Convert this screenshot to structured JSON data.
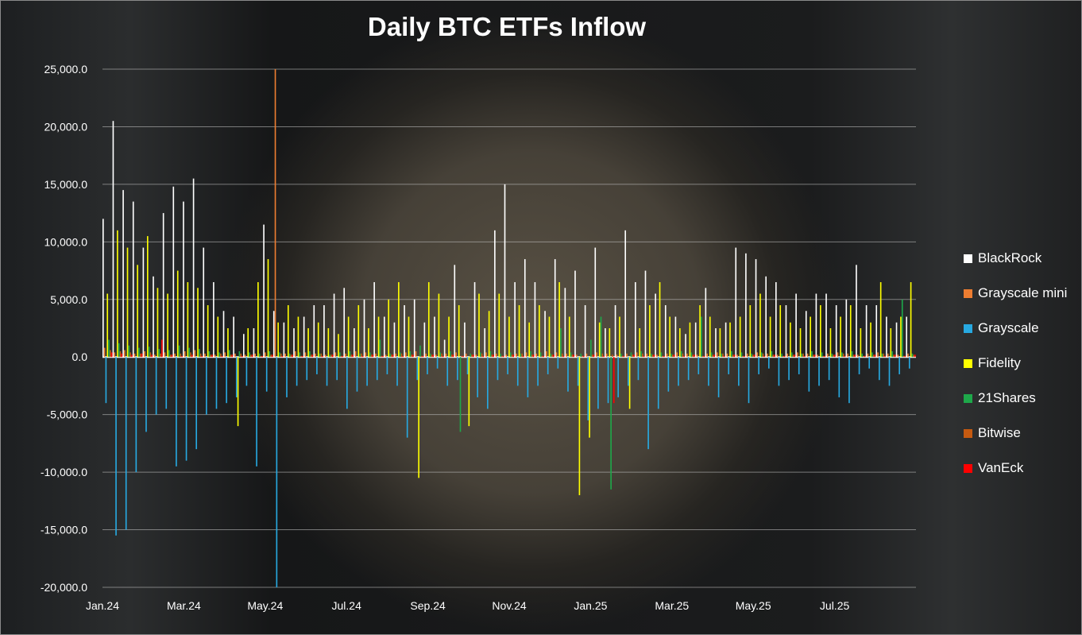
{
  "chart_data": {
    "type": "bar",
    "title": "Daily BTC ETFs Inflow",
    "xlabel": "",
    "ylabel": "",
    "ylim": [
      -20000,
      25000
    ],
    "yticks": [
      "25,000.0",
      "20,000.0",
      "15,000.0",
      "10,000.0",
      "5,000.0",
      "0.0",
      "-5,000.0",
      "-10,000.0",
      "-15,000.0",
      "-20,000.0"
    ],
    "ytick_values": [
      25000,
      20000,
      15000,
      10000,
      5000,
      0,
      -5000,
      -10000,
      -15000,
      -20000
    ],
    "xticks": [
      "Jan.24",
      "Mar.24",
      "May.24",
      "Jul.24",
      "Sep.24",
      "Nov.24",
      "Jan.25",
      "Mar.25",
      "May.25",
      "Jul.25"
    ],
    "grid": true,
    "legend_position": "right",
    "series": [
      {
        "name": "BlackRock",
        "color": "#ffffff",
        "values": [
          12000,
          20500,
          14500,
          13500,
          9500,
          7000,
          12500,
          14800,
          13500,
          15500,
          9500,
          6500,
          4000,
          3500,
          2000,
          2500,
          11500,
          4000,
          3000,
          2500,
          3500,
          4500,
          4500,
          5500,
          6000,
          2500,
          5000,
          6500,
          3500,
          3000,
          4500,
          5000,
          3000,
          3500,
          1500,
          8000,
          3000,
          6500,
          2500,
          11000,
          15000,
          6500,
          8500,
          6500,
          4000,
          8500,
          6000,
          7500,
          4500,
          9500,
          2500,
          4500,
          11000,
          6500,
          7500,
          5500,
          4500,
          3500,
          2000,
          3000,
          6000,
          2500,
          3000,
          9500,
          9000,
          8500,
          7000,
          6500,
          4500,
          5500,
          4000,
          5500,
          5500,
          4500,
          5000,
          8000,
          4500,
          4500,
          3500,
          3000,
          3500
        ]
      },
      {
        "name": "Grayscale mini",
        "color": "#ed7d31",
        "values": [
          800,
          400,
          600,
          300,
          500,
          200,
          400,
          300,
          500,
          600,
          300,
          200,
          400,
          300,
          200,
          300,
          400,
          25000,
          300,
          500,
          400,
          300,
          200,
          400,
          300,
          500,
          400,
          300,
          200,
          300,
          400,
          500,
          300,
          200,
          300,
          400,
          300,
          200,
          400,
          300,
          200,
          300,
          400,
          300,
          500,
          400,
          300,
          200,
          300,
          400,
          300,
          200,
          300,
          400,
          300,
          200,
          300,
          400,
          300,
          200,
          300,
          400,
          300,
          200,
          300,
          400,
          300,
          200,
          300,
          400,
          300,
          200,
          300,
          400,
          300,
          200,
          300,
          400,
          300,
          200,
          300
        ]
      },
      {
        "name": "Grayscale",
        "color": "#27a9e1",
        "values": [
          -4000,
          -15500,
          -15000,
          -10000,
          -6500,
          -5000,
          -4500,
          -9500,
          -9000,
          -8000,
          -5000,
          -4500,
          -4000,
          -3500,
          -2500,
          -9500,
          -3000,
          -20000,
          -3500,
          -2500,
          -2000,
          -1500,
          -2500,
          -2000,
          -4500,
          -3000,
          -2500,
          -2000,
          -1500,
          -2500,
          -7000,
          -2000,
          -1500,
          -1000,
          -2500,
          -2000,
          -1500,
          -3500,
          -4500,
          -2000,
          -1500,
          -2500,
          -3500,
          -2500,
          -1500,
          -1000,
          -3000,
          -2500,
          -5500,
          -4500,
          -4000,
          -3500,
          -2500,
          -2000,
          -8000,
          -4500,
          -3000,
          -2500,
          -2000,
          -1500,
          -2500,
          -3500,
          -1500,
          -2500,
          -4000,
          -1500,
          -1000,
          -2500,
          -2000,
          -1500,
          -3000,
          -2500,
          -2000,
          -3500,
          -4000,
          -1500,
          -1000,
          -2000,
          -2500,
          -1500,
          -1000
        ]
      },
      {
        "name": "Fidelity",
        "color": "#ffff00",
        "values": [
          5500,
          11000,
          9500,
          8000,
          10500,
          6000,
          5500,
          7500,
          6500,
          6000,
          4500,
          3500,
          2500,
          -6000,
          2500,
          6500,
          8500,
          3000,
          4500,
          3500,
          2500,
          3000,
          2500,
          2000,
          3500,
          4500,
          2500,
          3500,
          5000,
          6500,
          3500,
          -10500,
          6500,
          5500,
          3500,
          4500,
          -6000,
          5500,
          4000,
          5500,
          3500,
          4500,
          3000,
          4500,
          3500,
          6500,
          3500,
          -12000,
          -7000,
          3000,
          2500,
          3500,
          -4500,
          2500,
          4500,
          6500,
          3500,
          2500,
          3000,
          4500,
          3500,
          2500,
          3000,
          3500,
          4500,
          5500,
          3500,
          4500,
          3000,
          2500,
          3500,
          4500,
          2500,
          3500,
          4500,
          2500,
          3000,
          6500,
          2500,
          3500,
          6500
        ]
      },
      {
        "name": "21Shares",
        "color": "#1ea84a",
        "values": [
          1500,
          1200,
          1000,
          800,
          900,
          700,
          600,
          1000,
          800,
          700,
          500,
          400,
          600,
          500,
          400,
          300,
          500,
          400,
          300,
          400,
          500,
          300,
          200,
          400,
          500,
          300,
          400,
          1500,
          300,
          400,
          500,
          1000,
          300,
          400,
          500,
          -6500,
          300,
          400,
          500,
          300,
          400,
          300,
          500,
          400,
          300,
          2500,
          400,
          300,
          1500,
          3500,
          -11500,
          300,
          400,
          500,
          300,
          400,
          300,
          500,
          400,
          3500,
          400,
          300,
          500,
          400,
          300,
          400,
          500,
          300,
          400,
          300,
          500,
          400,
          300,
          400,
          500,
          300,
          400,
          300,
          500,
          5000,
          300
        ]
      },
      {
        "name": "Bitwise",
        "color": "#c55a11",
        "values": [
          600,
          500,
          400,
          300,
          400,
          300,
          200,
          300,
          400,
          300,
          200,
          300,
          200,
          300,
          200,
          100,
          200,
          300,
          200,
          100,
          200,
          300,
          200,
          100,
          200,
          300,
          200,
          100,
          200,
          300,
          200,
          100,
          200,
          300,
          200,
          100,
          200,
          300,
          200,
          100,
          200,
          300,
          200,
          100,
          200,
          300,
          200,
          100,
          200,
          300,
          200,
          100,
          200,
          300,
          200,
          100,
          200,
          300,
          200,
          100,
          200,
          300,
          200,
          100,
          200,
          300,
          200,
          100,
          200,
          300,
          200,
          100,
          200,
          300,
          200,
          100,
          200,
          300,
          200,
          100,
          200
        ]
      },
      {
        "name": "VanEck",
        "color": "#ff0000",
        "values": [
          400,
          300,
          200,
          300,
          200,
          1500,
          200,
          100,
          200,
          100,
          200,
          100,
          200,
          100,
          200,
          100,
          200,
          100,
          200,
          100,
          200,
          100,
          200,
          100,
          200,
          100,
          200,
          100,
          200,
          100,
          200,
          100,
          200,
          100,
          200,
          100,
          200,
          100,
          200,
          100,
          200,
          100,
          200,
          100,
          200,
          100,
          200,
          100,
          200,
          100,
          -4000,
          100,
          200,
          100,
          200,
          100,
          200,
          100,
          200,
          100,
          200,
          100,
          200,
          100,
          200,
          100,
          200,
          100,
          200,
          100,
          200,
          100,
          200,
          100,
          200,
          100,
          200,
          100,
          200,
          100,
          200
        ]
      }
    ]
  }
}
